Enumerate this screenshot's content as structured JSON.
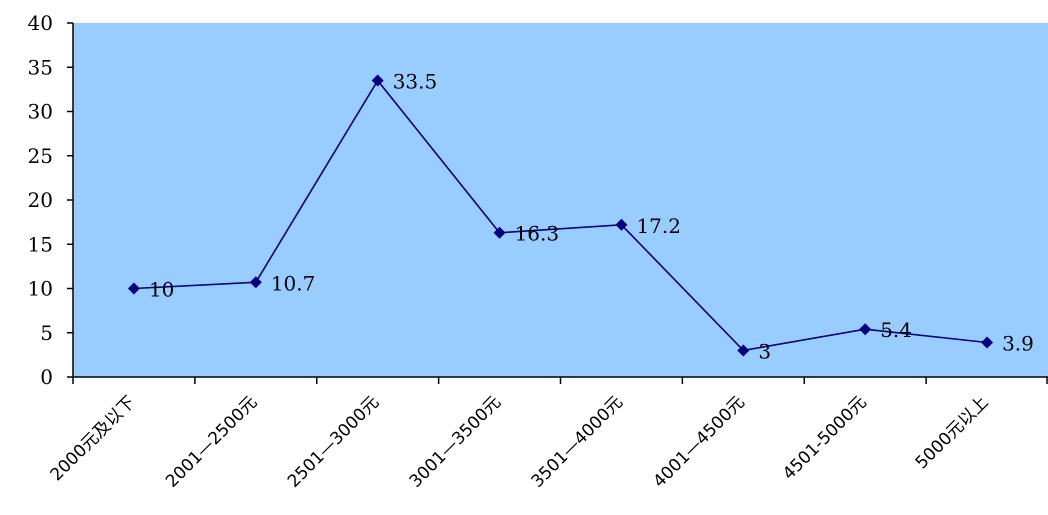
{
  "chart_data": {
    "type": "line",
    "categories": [
      "2000元及以下",
      "2001—2500元",
      "2501—3000元",
      "3001—3500元",
      "3501—4000元",
      "4001—4500元",
      "4501-5000元",
      "5000元以上"
    ],
    "values": [
      10,
      10.7,
      33.5,
      16.3,
      17.2,
      3,
      5.4,
      3.9
    ],
    "data_labels": [
      "10",
      "10.7",
      "33.5",
      "16.3",
      "17.2",
      "3",
      "5.4",
      "3.9"
    ],
    "ylim": [
      0,
      40
    ],
    "yticks": [
      0,
      5,
      10,
      15,
      20,
      25,
      30,
      35,
      40
    ],
    "grid": false,
    "legend": "none",
    "colors": {
      "plot_background": "#99ccff",
      "line": "#000080",
      "marker": "#000080",
      "axis": "#000000"
    }
  }
}
